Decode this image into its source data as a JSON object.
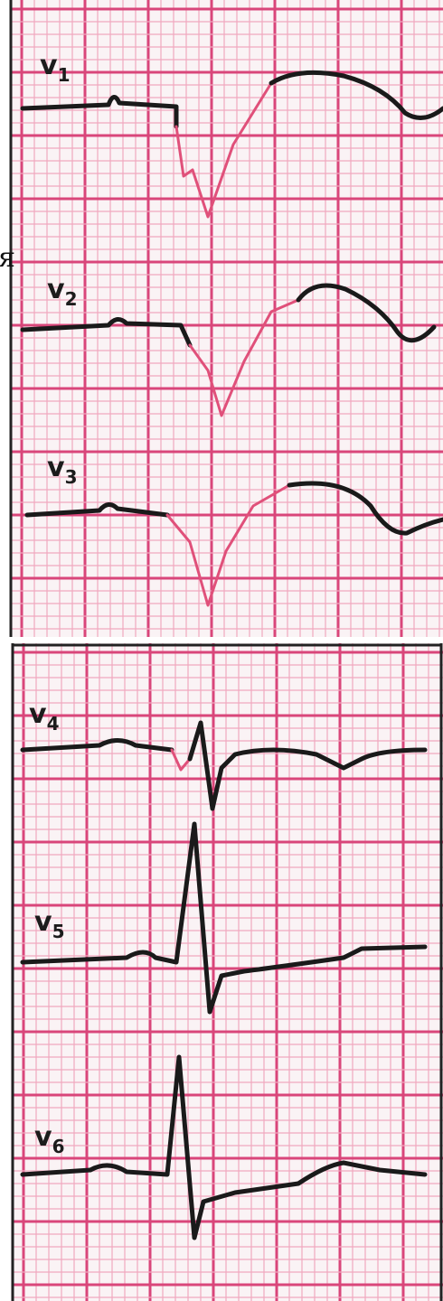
{
  "edge_text": "я",
  "leads": [
    {
      "letter": "v",
      "number": "1"
    },
    {
      "letter": "v",
      "number": "2"
    },
    {
      "letter": "v",
      "number": "3"
    },
    {
      "letter": "v",
      "number": "4"
    },
    {
      "letter": "v",
      "number": "5"
    },
    {
      "letter": "v",
      "number": "6"
    }
  ]
}
